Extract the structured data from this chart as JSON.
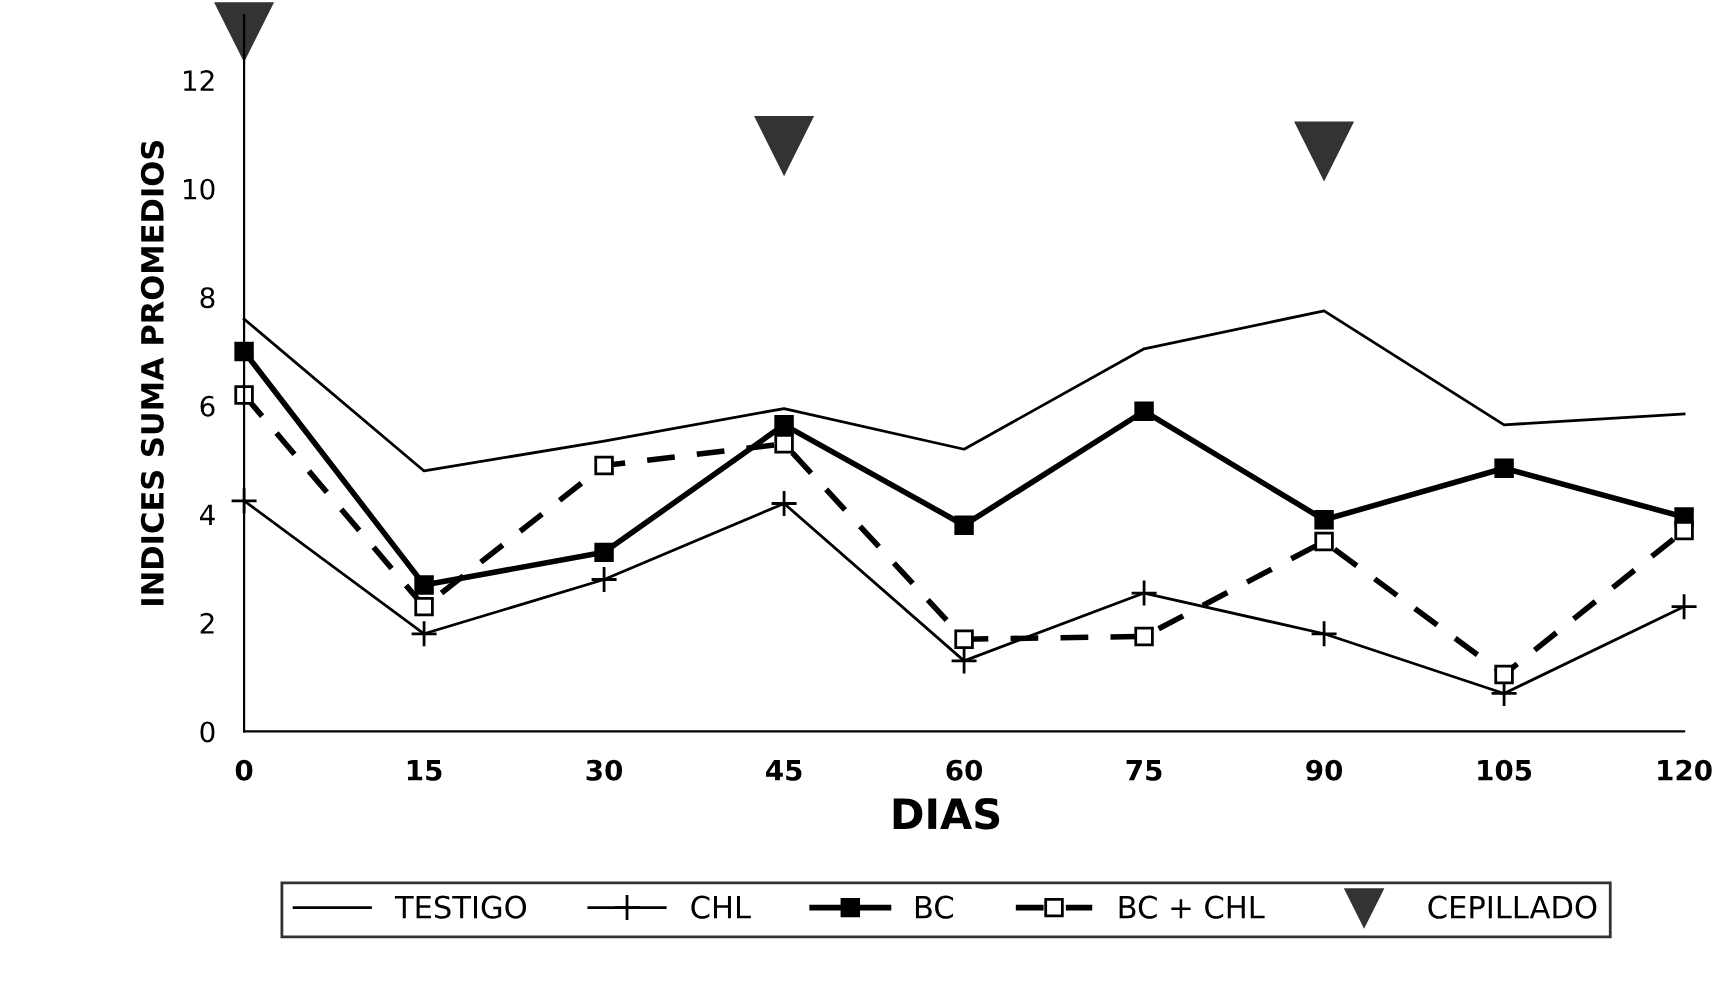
{
  "chart_data": {
    "type": "line",
    "xlabel": "DIAS",
    "ylabel": "INDICES SUMA PROMEDIOS",
    "categories": [
      "0",
      "15",
      "30",
      "45",
      "60",
      "75",
      "90",
      "105",
      "120"
    ],
    "ylim": [
      0,
      13.2
    ],
    "yticks": [
      0,
      2,
      4,
      6,
      8,
      10,
      12
    ],
    "grid": false,
    "legend": "bottom",
    "series": [
      {
        "name": "TESTIGO",
        "color": "#000000",
        "marker": "none",
        "line_style": "solid",
        "values": [
          7.6,
          4.8,
          5.35,
          5.95,
          5.2,
          7.05,
          7.75,
          5.65,
          5.85
        ]
      },
      {
        "name": "CHL",
        "color": "#000000",
        "marker": "cross",
        "line_style": "solid",
        "values": [
          4.25,
          1.8,
          2.8,
          4.2,
          1.3,
          2.55,
          1.8,
          0.7,
          2.3
        ]
      },
      {
        "name": "BC",
        "color": "#000000",
        "marker": "square",
        "line_style": "solid",
        "values": [
          7.0,
          2.7,
          3.3,
          5.65,
          3.8,
          5.9,
          3.9,
          4.85,
          3.95
        ]
      },
      {
        "name": "BC + CHL",
        "color": "#000000",
        "marker": "square",
        "line_style": "dashed",
        "values": [
          6.2,
          2.3,
          4.9,
          5.3,
          1.7,
          1.75,
          3.5,
          1.05,
          3.7
        ]
      },
      {
        "name": "CEPILLADO",
        "type": "scatter",
        "color": "#333333",
        "marker": "triangle",
        "values": [
          12.9,
          null,
          null,
          10.8,
          null,
          null,
          10.7,
          null,
          null
        ]
      }
    ]
  }
}
